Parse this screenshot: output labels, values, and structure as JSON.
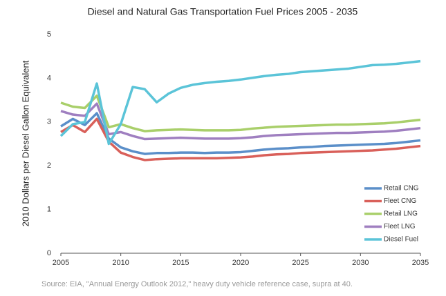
{
  "chart_data": {
    "type": "line",
    "title": "Diesel and Natural Gas Transportation Fuel Prices 2005 - 2035",
    "y_label": "2010 Dollars per Diesel Gallon Equivalent",
    "source": "Source: EIA, \"Annual Energy Outlook 2012,\" heavy duty vehicle reference case, supra at 40.",
    "x": [
      2005,
      2006,
      2007,
      2008,
      2009,
      2010,
      2011,
      2012,
      2013,
      2014,
      2015,
      2016,
      2017,
      2018,
      2019,
      2020,
      2021,
      2022,
      2023,
      2024,
      2025,
      2026,
      2027,
      2028,
      2029,
      2030,
      2031,
      2032,
      2033,
      2034,
      2035
    ],
    "xlim": [
      2005,
      2035
    ],
    "xticks": [
      2005,
      2010,
      2015,
      2020,
      2025,
      2030,
      2035
    ],
    "ylim": [
      0,
      5
    ],
    "yticks": [
      0,
      1,
      2,
      3,
      4,
      5
    ],
    "grid": false,
    "legend": "lower-right",
    "series": [
      {
        "name": "Retail CNG",
        "color": "#5b8fc9",
        "values": [
          2.9,
          3.07,
          2.93,
          3.2,
          2.62,
          2.42,
          2.33,
          2.27,
          2.29,
          2.29,
          2.3,
          2.3,
          2.29,
          2.3,
          2.3,
          2.31,
          2.34,
          2.37,
          2.39,
          2.4,
          2.42,
          2.43,
          2.45,
          2.46,
          2.47,
          2.48,
          2.49,
          2.5,
          2.52,
          2.55,
          2.58
        ]
      },
      {
        "name": "Fleet CNG",
        "color": "#d9605a",
        "values": [
          2.77,
          2.93,
          2.77,
          3.07,
          2.55,
          2.3,
          2.2,
          2.13,
          2.15,
          2.16,
          2.17,
          2.17,
          2.17,
          2.17,
          2.18,
          2.19,
          2.21,
          2.24,
          2.26,
          2.27,
          2.29,
          2.3,
          2.31,
          2.32,
          2.33,
          2.34,
          2.35,
          2.37,
          2.39,
          2.42,
          2.45
        ]
      },
      {
        "name": "Retail LNG",
        "color": "#a9cf6a",
        "values": [
          3.44,
          3.35,
          3.32,
          3.6,
          2.88,
          2.95,
          2.86,
          2.79,
          2.81,
          2.82,
          2.83,
          2.82,
          2.81,
          2.81,
          2.81,
          2.82,
          2.85,
          2.87,
          2.89,
          2.9,
          2.91,
          2.92,
          2.93,
          2.94,
          2.94,
          2.95,
          2.96,
          2.97,
          2.99,
          3.02,
          3.05
        ]
      },
      {
        "name": "Fleet LNG",
        "color": "#9f7fc0",
        "values": [
          3.25,
          3.17,
          3.14,
          3.42,
          2.72,
          2.77,
          2.68,
          2.61,
          2.62,
          2.63,
          2.64,
          2.63,
          2.62,
          2.62,
          2.62,
          2.63,
          2.65,
          2.68,
          2.7,
          2.71,
          2.72,
          2.73,
          2.74,
          2.75,
          2.75,
          2.76,
          2.77,
          2.78,
          2.8,
          2.83,
          2.86
        ]
      },
      {
        "name": "Diesel Fuel",
        "color": "#5bc4d8",
        "values": [
          2.68,
          2.95,
          3.0,
          3.88,
          2.5,
          2.95,
          3.8,
          3.75,
          3.45,
          3.65,
          3.78,
          3.85,
          3.89,
          3.92,
          3.94,
          3.97,
          4.01,
          4.05,
          4.08,
          4.1,
          4.14,
          4.16,
          4.18,
          4.2,
          4.22,
          4.26,
          4.3,
          4.31,
          4.33,
          4.36,
          4.39
        ]
      }
    ]
  }
}
